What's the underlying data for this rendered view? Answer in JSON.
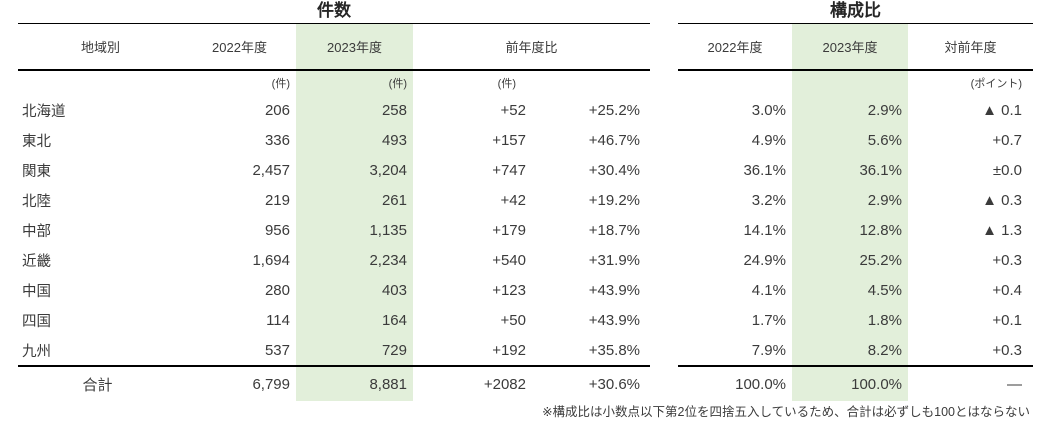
{
  "left_table": {
    "title": "件数",
    "headers": {
      "region": "地域別",
      "fy2022": "2022年度",
      "fy2023": "2023年度",
      "yoy": "前年度比"
    },
    "units": {
      "fy2022": "(件)",
      "fy2023": "(件)",
      "yoy_diff": "(件)"
    }
  },
  "right_table": {
    "title": "構成比",
    "headers": {
      "fy2022": "2022年度",
      "fy2023": "2023年度",
      "yoy": "対前年度"
    },
    "units": {
      "yoy": "(ポイント)"
    }
  },
  "rows": [
    {
      "region": "北海道",
      "cnt2022": "206",
      "cnt2023": "258",
      "diff": "+52",
      "pct": "+25.2%",
      "share2022": "3.0%",
      "share2023": "2.9%",
      "share_diff": "▲ 0.1"
    },
    {
      "region": "東北",
      "cnt2022": "336",
      "cnt2023": "493",
      "diff": "+157",
      "pct": "+46.7%",
      "share2022": "4.9%",
      "share2023": "5.6%",
      "share_diff": "+0.7"
    },
    {
      "region": "関東",
      "cnt2022": "2,457",
      "cnt2023": "3,204",
      "diff": "+747",
      "pct": "+30.4%",
      "share2022": "36.1%",
      "share2023": "36.1%",
      "share_diff": "±0.0"
    },
    {
      "region": "北陸",
      "cnt2022": "219",
      "cnt2023": "261",
      "diff": "+42",
      "pct": "+19.2%",
      "share2022": "3.2%",
      "share2023": "2.9%",
      "share_diff": "▲ 0.3"
    },
    {
      "region": "中部",
      "cnt2022": "956",
      "cnt2023": "1,135",
      "diff": "+179",
      "pct": "+18.7%",
      "share2022": "14.1%",
      "share2023": "12.8%",
      "share_diff": "▲ 1.3"
    },
    {
      "region": "近畿",
      "cnt2022": "1,694",
      "cnt2023": "2,234",
      "diff": "+540",
      "pct": "+31.9%",
      "share2022": "24.9%",
      "share2023": "25.2%",
      "share_diff": "+0.3"
    },
    {
      "region": "中国",
      "cnt2022": "280",
      "cnt2023": "403",
      "diff": "+123",
      "pct": "+43.9%",
      "share2022": "4.1%",
      "share2023": "4.5%",
      "share_diff": "+0.4"
    },
    {
      "region": "四国",
      "cnt2022": "114",
      "cnt2023": "164",
      "diff": "+50",
      "pct": "+43.9%",
      "share2022": "1.7%",
      "share2023": "1.8%",
      "share_diff": "+0.1"
    },
    {
      "region": "九州",
      "cnt2022": "537",
      "cnt2023": "729",
      "diff": "+192",
      "pct": "+35.8%",
      "share2022": "7.9%",
      "share2023": "8.2%",
      "share_diff": "+0.3"
    }
  ],
  "total": {
    "label": "合計",
    "cnt2022": "6,799",
    "cnt2023": "8,881",
    "diff": "+2082",
    "pct": "+30.6%",
    "share2022": "100.0%",
    "share2023": "100.0%",
    "share_diff": "—"
  },
  "footnote": "※構成比は小数点以下第2位を四捨五入しているため、合計は必ずしも100とはならない",
  "colors": {
    "highlight_green": "#e2efda",
    "rule_black": "#000000",
    "text_dark": "#3b3b3b"
  }
}
